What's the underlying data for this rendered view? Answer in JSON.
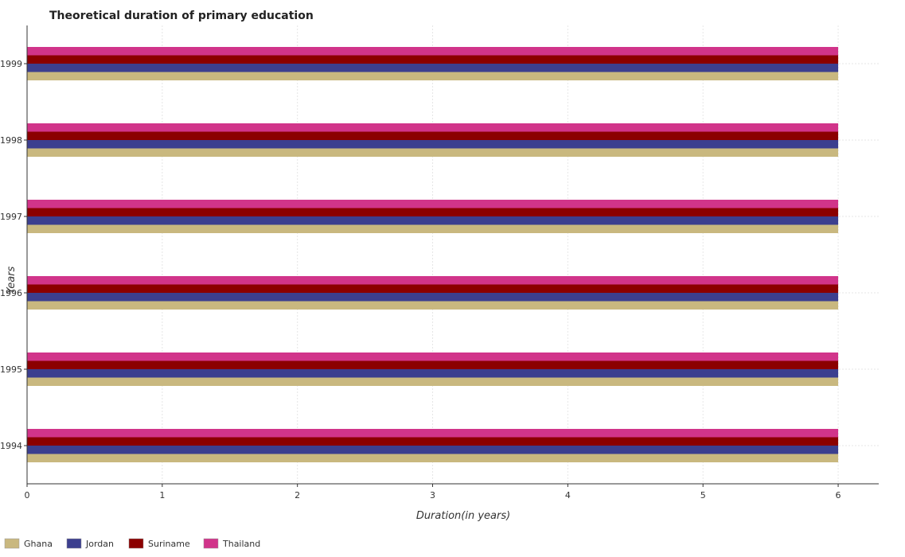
{
  "chart_data": {
    "type": "bar",
    "orientation": "horizontal",
    "title": "Theoretical duration of primary education",
    "xlabel": "Duration(in years)",
    "ylabel": "Years",
    "categories": [
      "1994",
      "1995",
      "1996",
      "1997",
      "1998",
      "1999"
    ],
    "series": [
      {
        "name": "Ghana",
        "color": "#c9b87f",
        "values": [
          6,
          6,
          6,
          6,
          6,
          6
        ]
      },
      {
        "name": "Jordan",
        "color": "#3c3f8f",
        "values": [
          6,
          6,
          6,
          6,
          6,
          6
        ]
      },
      {
        "name": "Suriname",
        "color": "#8b0000",
        "values": [
          6,
          6,
          6,
          6,
          6,
          6
        ]
      },
      {
        "name": "Thailand",
        "color": "#d1348a",
        "values": [
          6,
          6,
          6,
          6,
          6,
          6
        ]
      }
    ],
    "xlim": [
      0,
      6.3
    ],
    "xticks": [
      0,
      1,
      2,
      3,
      4,
      5,
      6
    ],
    "grid": true,
    "legend_position": "bottom-left"
  }
}
